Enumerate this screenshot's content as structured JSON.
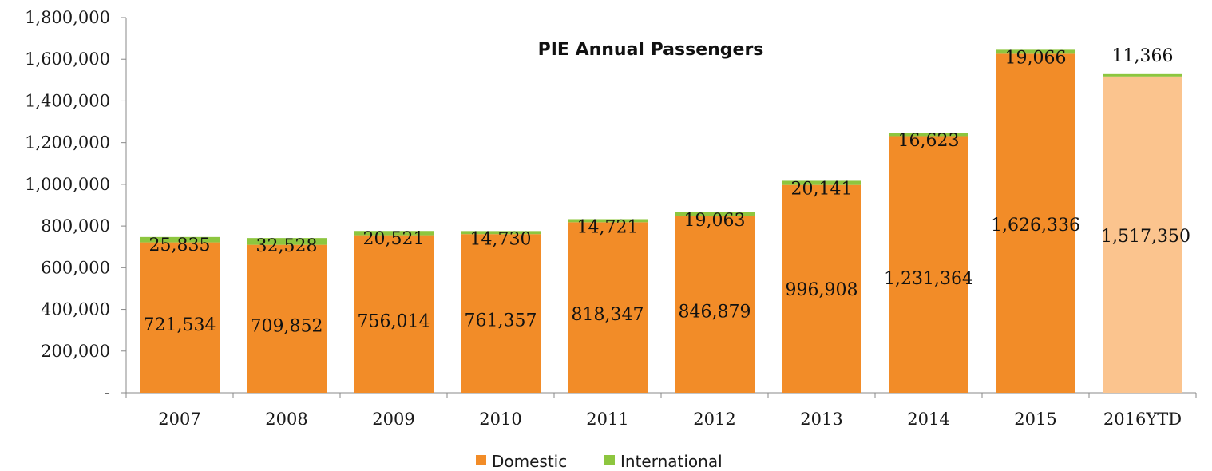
{
  "chart_data": {
    "type": "bar",
    "stacked": true,
    "title": "PIE Annual Passengers",
    "xlabel": "",
    "ylabel": "",
    "ylim": [
      0,
      1800000
    ],
    "yticks": [
      0,
      200000,
      400000,
      600000,
      800000,
      1000000,
      1200000,
      1400000,
      1600000,
      1800000
    ],
    "ytick_labels": [
      "-",
      "200,000",
      "400,000",
      "600,000",
      "800,000",
      "1,000,000",
      "1,200,000",
      "1,400,000",
      "1,600,000",
      "1,800,000"
    ],
    "categories": [
      "2007",
      "2008",
      "2009",
      "2010",
      "2011",
      "2012",
      "2013",
      "2014",
      "2015",
      "2016YTD"
    ],
    "series": [
      {
        "name": "Domestic",
        "color": "#f28c28",
        "values": [
          721534,
          709852,
          756014,
          761357,
          818347,
          846879,
          996908,
          1231364,
          1626336,
          1517350
        ],
        "labels": [
          "721,534",
          "709,852",
          "756,014",
          "761,357",
          "818,347",
          "846,879",
          "996,908",
          "1,231,364",
          "1,626,336",
          "1,517,350"
        ]
      },
      {
        "name": "International",
        "color": "#8dc63f",
        "values": [
          25835,
          32528,
          20521,
          14730,
          14721,
          19063,
          20141,
          16623,
          19066,
          11366
        ],
        "labels": [
          "25,835",
          "32,528",
          "20,521",
          "14,730",
          "14,721",
          "19,063",
          "20,141",
          "16,623",
          "19,066",
          "11,366"
        ]
      }
    ],
    "highlight_color": "#fbc48e",
    "highlight_index": 9,
    "grid": false,
    "legend_position": "bottom"
  }
}
